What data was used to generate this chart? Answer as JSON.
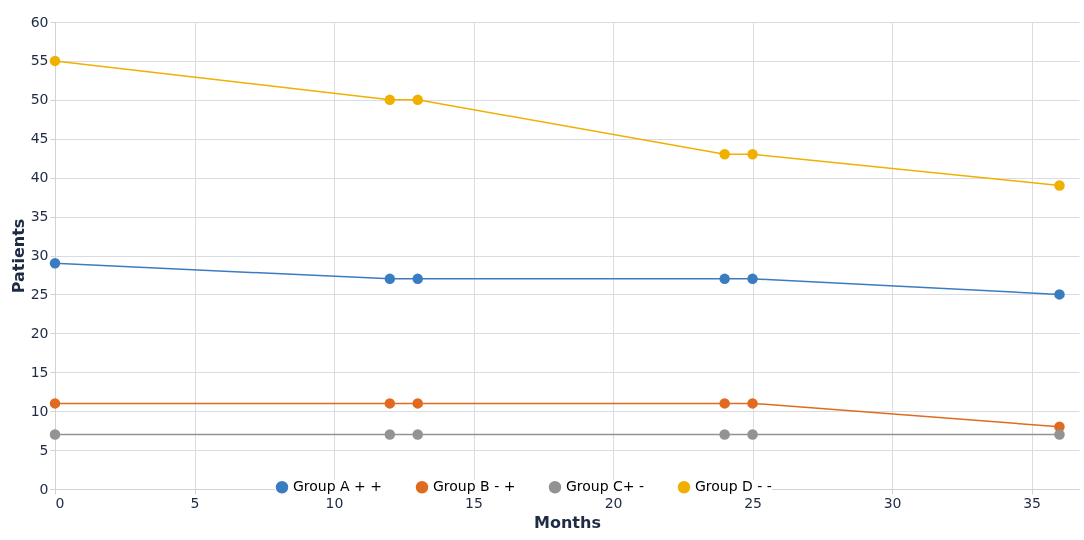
{
  "chart_data": {
    "type": "line",
    "xlabel": "Months",
    "ylabel": "Patients",
    "x": [
      0,
      12,
      13,
      24,
      25,
      36
    ],
    "series": [
      {
        "name": "Group A + +",
        "color": "#3a7cc0",
        "values": [
          29,
          27,
          27,
          27,
          27,
          25
        ]
      },
      {
        "name": "Group B - +",
        "color": "#e06a1f",
        "values": [
          11,
          11,
          11,
          11,
          11,
          8
        ]
      },
      {
        "name": "Group C+ -",
        "color": "#939393",
        "values": [
          7,
          7,
          7,
          7,
          7,
          7
        ]
      },
      {
        "name": "Group D - -",
        "color": "#f0b000",
        "values": [
          55,
          50,
          50,
          43,
          43,
          39
        ]
      }
    ],
    "xlim": [
      0,
      36.7
    ],
    "xticks": [
      0,
      5,
      10,
      15,
      20,
      25,
      30,
      35
    ],
    "ylim": [
      0,
      60
    ],
    "yticks": [
      0,
      5,
      10,
      15,
      20,
      25,
      30,
      35,
      40,
      45,
      50,
      55,
      60
    ],
    "grid": true,
    "legend": "bottom",
    "marker": "circle",
    "line_style": "solid"
  }
}
